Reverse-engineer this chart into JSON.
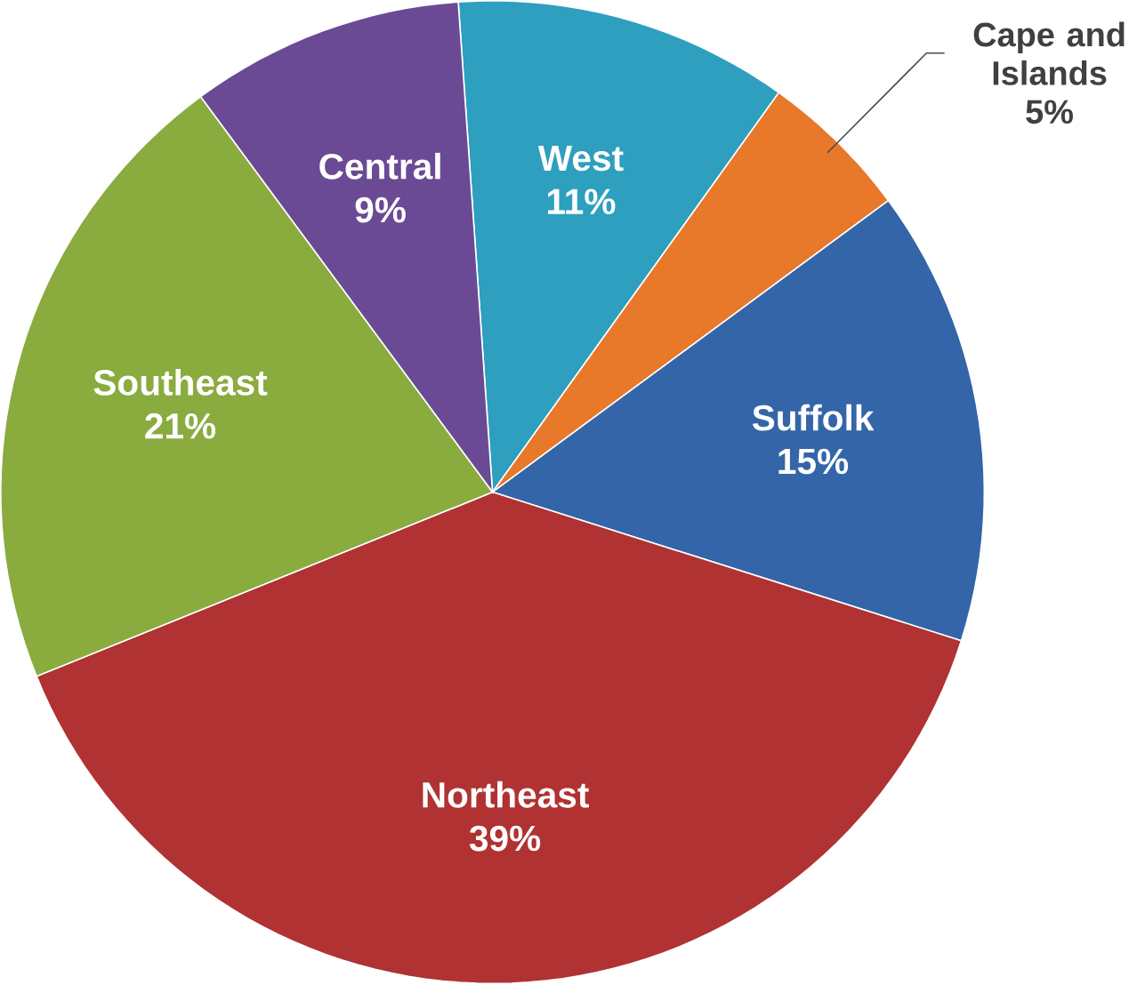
{
  "chart_data": {
    "type": "pie",
    "categories": [
      "West",
      "Cape and Islands",
      "Suffolk",
      "Northeast",
      "Southeast",
      "Central"
    ],
    "values": [
      11,
      5,
      15,
      39,
      21,
      9
    ],
    "value_labels": [
      "11%",
      "5%",
      "15%",
      "39%",
      "21%",
      "9%"
    ],
    "colors": [
      "#2e9fbf",
      "#e8782a",
      "#3465a8",
      "#b03232",
      "#8aab3e",
      "#6a4a94"
    ]
  }
}
